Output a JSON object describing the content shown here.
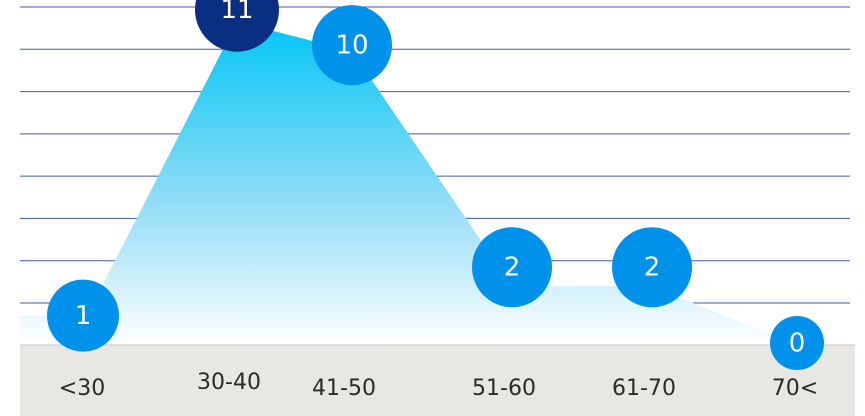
{
  "chart_data": {
    "type": "area",
    "categories": [
      "<30",
      "30-40",
      "41-50",
      "51-60",
      "61-70",
      "70<"
    ],
    "values": [
      1,
      11,
      10,
      2,
      2,
      0
    ],
    "ylim": [
      0,
      11.5
    ],
    "grid": true,
    "legend": "none",
    "highlight_index": 1,
    "colors": {
      "area_top": "#00c6f5",
      "area_bottom": "#ffffff",
      "bubble": "#0091ea",
      "bubble_highlight": "#0b2f80",
      "grid": "#3e5aa8",
      "axis_band": "#e9e7e4"
    }
  }
}
